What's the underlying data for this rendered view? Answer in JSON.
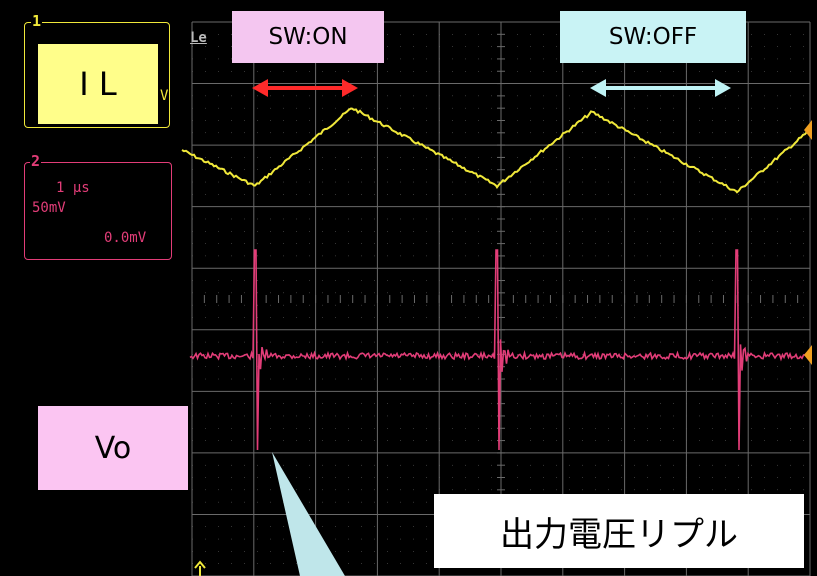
{
  "channel1": {
    "number": "1",
    "trace_label": "I L",
    "clip_text": "V",
    "color": "#f0e83a"
  },
  "channel2": {
    "number": "2",
    "timebase": "1 µs",
    "volts_div": "50mV",
    "offset": "0.0mV",
    "color": "#e23d78"
  },
  "screen_logo": "Le",
  "annotations": {
    "sw_on": "SW:ON",
    "sw_off": "SW:OFF",
    "vo": "Vo",
    "ripple": "出力電圧リプル"
  },
  "colors": {
    "grid": "#6a6a6a",
    "sw_on_bg": "#f4c6f0",
    "sw_off_bg": "#c9f3f5",
    "il_bg": "#fffe8a",
    "vo_bg": "#fbc5f2",
    "callout": "#bfe6ea",
    "on_arrow": "#ff2a2a",
    "off_arrow": "#bff3f5"
  }
}
